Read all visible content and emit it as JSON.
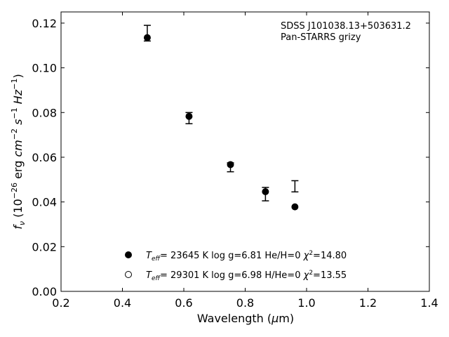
{
  "chart_data": {
    "type": "scatter",
    "xlabel": "Wavelength (μm)",
    "ylabel": "f_ν (10^-26 erg cm^-2 s^-1 Hz^-1)",
    "xlim": [
      0.2,
      1.4
    ],
    "ylim": [
      0.0,
      0.125
    ],
    "x_ticks": [
      "0.2",
      "0.4",
      "0.6",
      "0.8",
      "1.0",
      "1.2",
      "1.4"
    ],
    "y_ticks": [
      "0.00",
      "0.02",
      "0.04",
      "0.06",
      "0.08",
      "0.10",
      "0.12"
    ],
    "grid": false,
    "annotation": [
      "SDSS J101038.13+503631.2",
      "Pan-STARRS grizy"
    ],
    "observed": {
      "x": [
        0.481,
        0.617,
        0.752,
        0.866,
        0.962
      ],
      "y": [
        0.1155,
        0.0775,
        0.0555,
        0.0435,
        0.047
      ],
      "yerr": [
        0.0035,
        0.0025,
        0.002,
        0.003,
        0.0025
      ]
    },
    "series": [
      {
        "name": "T_eff= 23645 K  log g=6.81  He/H=0  χ²=14.80",
        "marker": "filled-circle",
        "x": [
          0.481,
          0.617,
          0.752,
          0.866,
          0.962
        ],
        "y": [
          0.1135,
          0.0783,
          0.0567,
          0.0446,
          0.0378
        ]
      },
      {
        "name": "T_eff= 29301 K  log g=6.98  H/He=0  χ²=13.55",
        "marker": "open-circle",
        "x": [],
        "y": []
      }
    ],
    "legend": {
      "placement": "lower-center",
      "entries": [
        {
          "teff": "23645",
          "logg": "6.81",
          "comp": "He/H=0",
          "chi2": "14.80"
        },
        {
          "teff": "29301",
          "logg": "6.98",
          "comp": "H/He=0",
          "chi2": "13.55"
        }
      ]
    }
  }
}
